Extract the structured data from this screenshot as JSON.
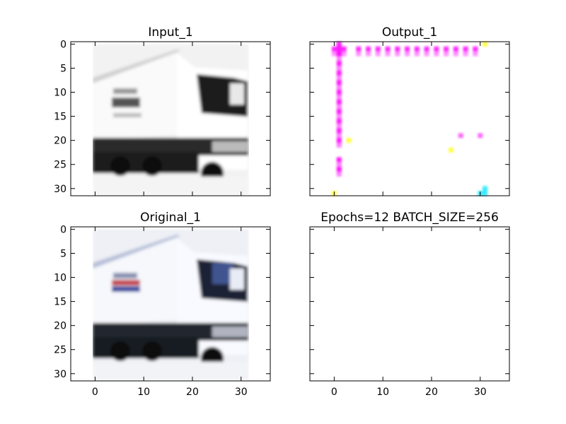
{
  "chart_data": [
    {
      "type": "image",
      "title": "Input_1",
      "colormap": "grayscale",
      "content": "blurred grayscale image of a white truck",
      "xlim": [
        -5,
        36
      ],
      "ylim": [
        31.5,
        -0.5
      ],
      "yticks": [
        0,
        5,
        10,
        15,
        20,
        25,
        30
      ],
      "xticks_labeled": false,
      "yticks_labeled": true
    },
    {
      "type": "image",
      "title": "Output_1",
      "colormap": "rgb",
      "content": "mostly white image with magenta line along row 0-1 and column 1, sparse yellow/cyan pixels",
      "xlim": [
        -5,
        36
      ],
      "ylim": [
        31.5,
        -0.5
      ],
      "yticks": [
        0,
        5,
        10,
        15,
        20,
        25,
        30
      ],
      "xticks_labeled": false,
      "yticks_labeled": false,
      "magenta_row_cols": [
        0,
        1,
        2,
        5,
        7,
        9,
        11,
        13,
        15,
        17,
        19,
        21,
        23,
        25,
        27,
        29
      ],
      "magenta_col_rows": [
        0,
        2,
        4,
        6,
        8,
        10,
        12,
        14,
        16,
        18,
        20,
        24,
        26
      ],
      "extra_magenta": [
        [
          26,
          19
        ],
        [
          30,
          19
        ]
      ],
      "yellow_pixels": [
        [
          0,
          31
        ],
        [
          31,
          0
        ],
        [
          3,
          20
        ],
        [
          24,
          22
        ]
      ],
      "cyan_pixels": [
        [
          31,
          30
        ],
        [
          30,
          31
        ],
        [
          31,
          31
        ]
      ]
    },
    {
      "type": "image",
      "title": "Original_1",
      "colormap": "rgb",
      "content": "blurred color image of a white truck with blue cab window",
      "xlim": [
        -5,
        36
      ],
      "ylim": [
        31.5,
        -0.5
      ],
      "xticks": [
        0,
        10,
        20,
        30
      ],
      "yticks": [
        0,
        5,
        10,
        15,
        20,
        25,
        30
      ],
      "xticks_labeled": true,
      "yticks_labeled": true
    },
    {
      "type": "image",
      "title": "Epochs=12 BATCH_SIZE=256",
      "colormap": "none",
      "content": "empty axes",
      "xlim": [
        -5,
        36
      ],
      "ylim": [
        31.5,
        -0.5
      ],
      "xticks": [
        0,
        10,
        20,
        30
      ],
      "xticks_labeled": true,
      "yticks_labeled": false
    }
  ]
}
